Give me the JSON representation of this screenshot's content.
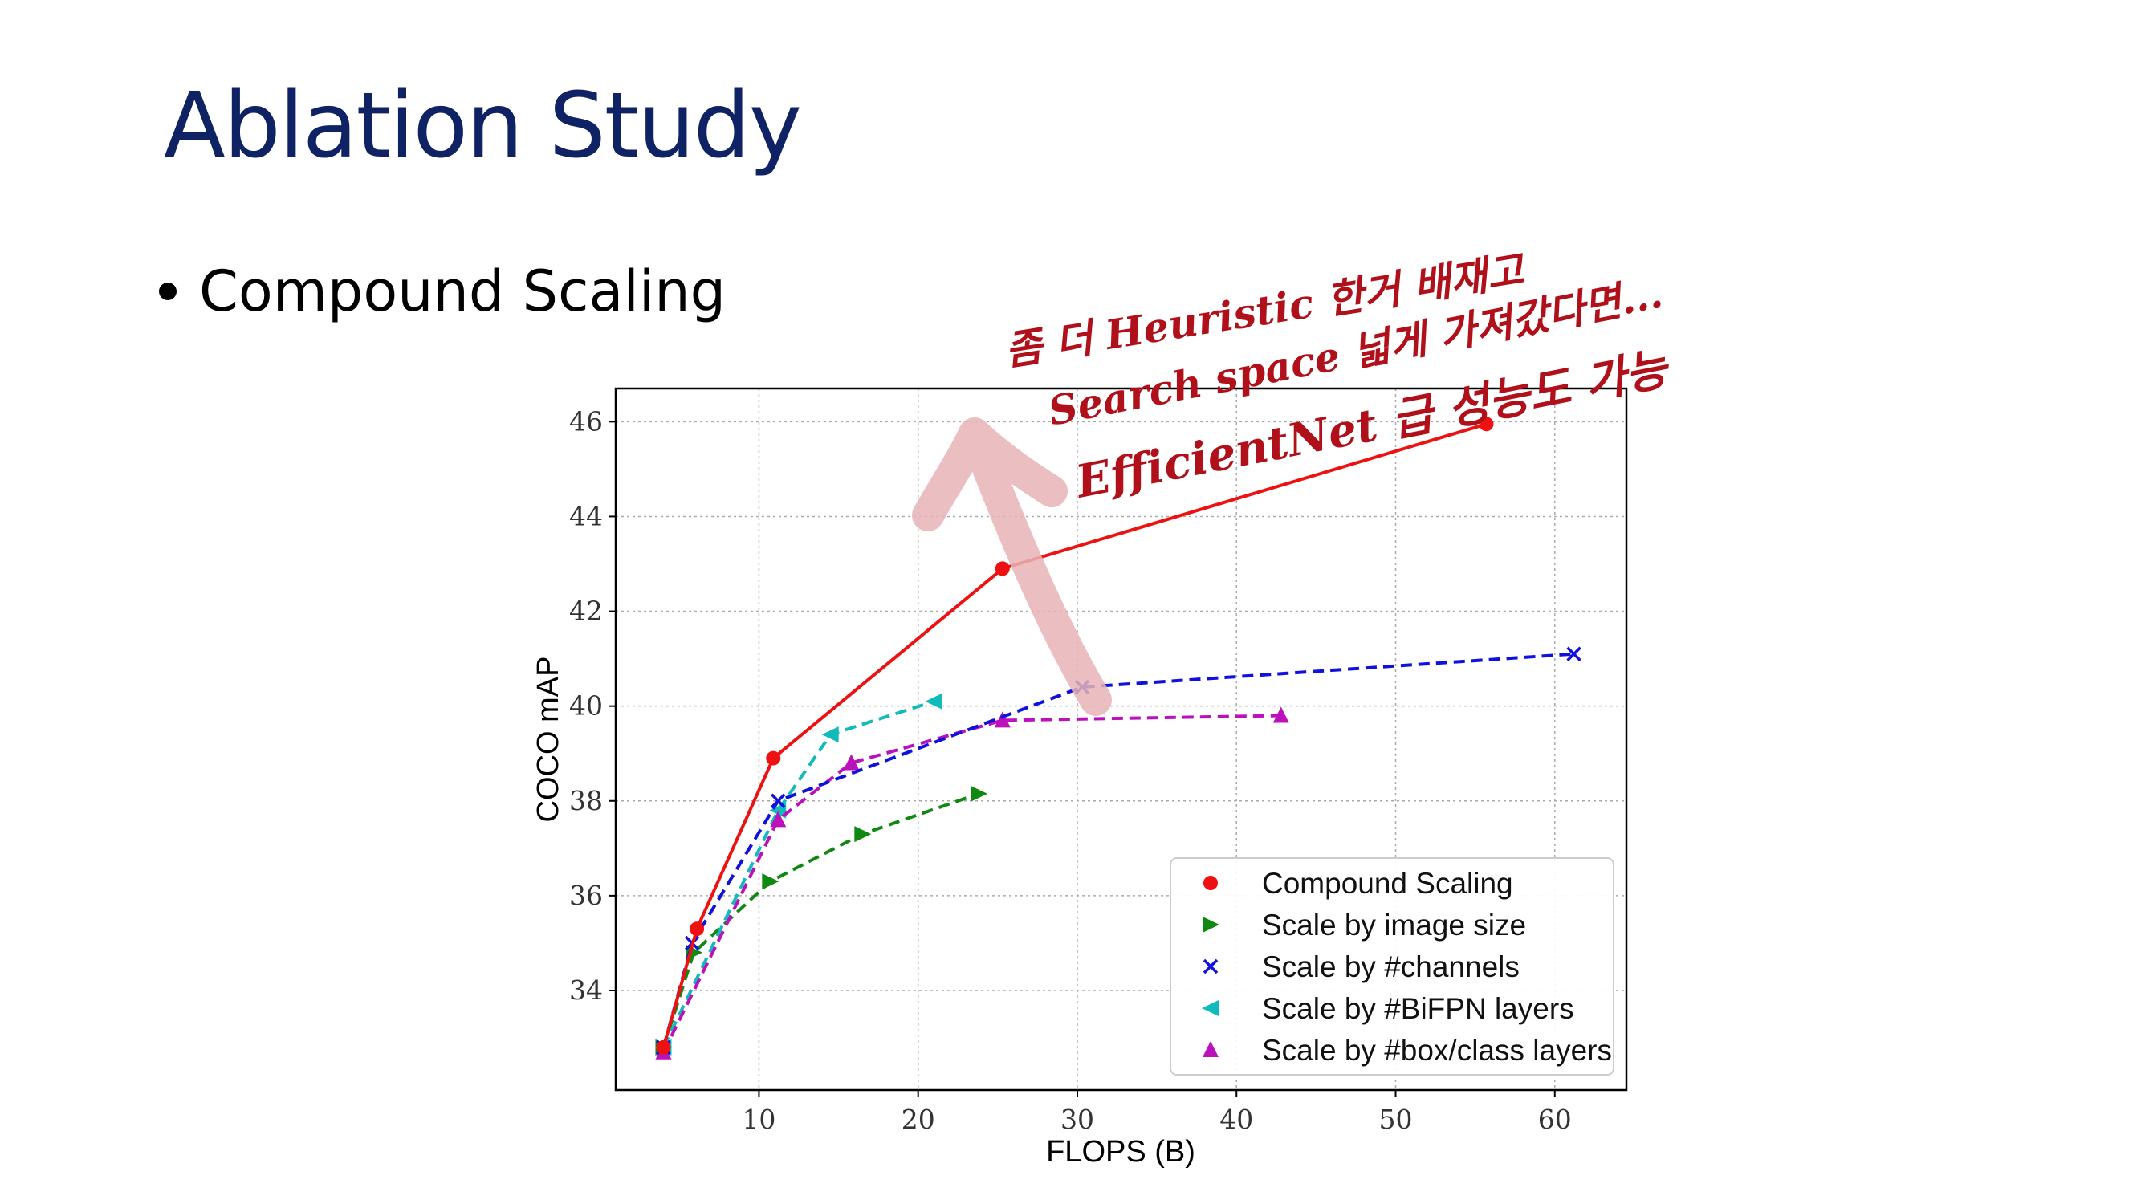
{
  "slide": {
    "title": "Ablation Study",
    "bullet": "Compound Scaling"
  },
  "annotation": {
    "lines": [
      "좀 더 Heuristic 한거 배재고",
      "Search space 넓게 가져갔다면...",
      "EfficientNet 급 성능도 가능"
    ],
    "color": "#b0101a",
    "arrow_color": "#e8b4b6"
  },
  "chart_data": {
    "type": "line",
    "xlabel": "FLOPS (B)",
    "ylabel": "COCO mAP",
    "xlim": [
      1,
      64.5
    ],
    "ylim": [
      31.9,
      46.7
    ],
    "xticks": [
      10,
      20,
      30,
      40,
      50,
      60
    ],
    "yticks": [
      34,
      36,
      38,
      40,
      42,
      44,
      46
    ],
    "grid": true,
    "legend_position": "lower-right",
    "series": [
      {
        "name": "Compound Scaling",
        "color": "#ee1111",
        "marker": "circle",
        "dash": "solid",
        "x": [
          4.0,
          6.1,
          10.9,
          25.3,
          55.7
        ],
        "y": [
          32.8,
          35.3,
          38.9,
          42.9,
          45.95
        ]
      },
      {
        "name": "Scale by image size",
        "color": "#118811",
        "marker": "triangle-right",
        "dash": "dashed",
        "x": [
          4.0,
          5.9,
          10.7,
          16.5,
          23.8
        ],
        "y": [
          32.8,
          34.8,
          36.3,
          37.3,
          38.15
        ]
      },
      {
        "name": "Scale by #channels",
        "color": "#1111dd",
        "marker": "x",
        "dash": "dashed",
        "x": [
          4.0,
          5.8,
          11.2,
          30.3,
          61.2
        ],
        "y": [
          32.8,
          35.0,
          38.0,
          40.4,
          41.1
        ]
      },
      {
        "name": "Scale by #BiFPN layers",
        "color": "#11bbbb",
        "marker": "triangle-left",
        "dash": "dashed",
        "x": [
          4.0,
          11.2,
          14.5,
          21.0
        ],
        "y": [
          32.8,
          37.8,
          39.4,
          40.1
        ]
      },
      {
        "name": "Scale by #box/class layers",
        "color": "#bb11bb",
        "marker": "triangle-up",
        "dash": "dashed",
        "x": [
          4.0,
          11.2,
          15.8,
          25.3,
          42.8
        ],
        "y": [
          32.7,
          37.6,
          38.8,
          39.7,
          39.8
        ]
      }
    ]
  }
}
